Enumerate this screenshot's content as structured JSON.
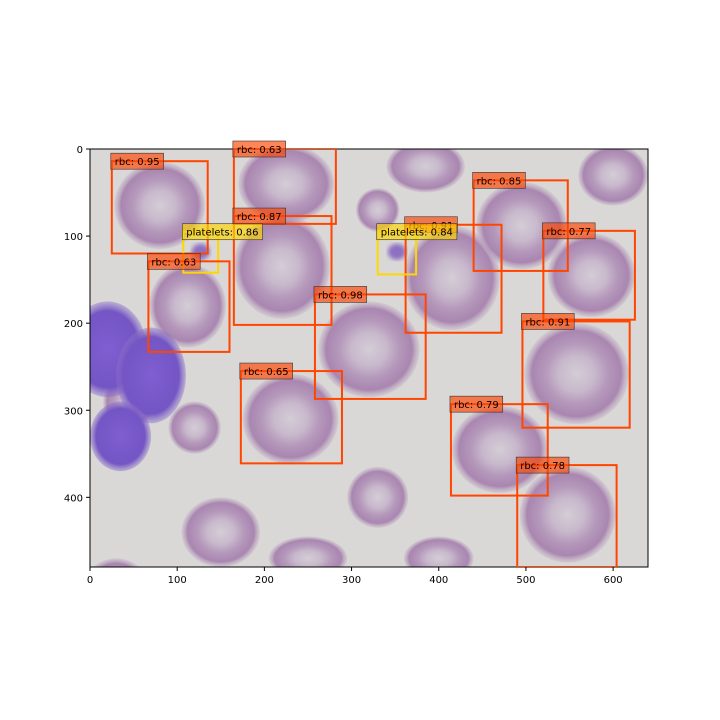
{
  "image": {
    "width": 640,
    "height": 480,
    "description_colors": {
      "background": "#d9d8d8",
      "rbc_fill": "#b394b6",
      "rbc_center": "#cfc7d1",
      "nucleus": "#7a56c8"
    }
  },
  "axes": {
    "x_ticks": [
      "0",
      "100",
      "200",
      "300",
      "400",
      "500",
      "600"
    ],
    "y_ticks": [
      "0",
      "100",
      "200",
      "300",
      "400"
    ],
    "xlim": [
      0,
      640
    ],
    "ylim": [
      480,
      0
    ]
  },
  "colors": {
    "rbc": "#ff4500",
    "platelets": "#ffd700"
  },
  "detections": [
    {
      "label": "rbc: 0.95",
      "cls": "rbc",
      "x1": 25,
      "y1": 14,
      "x2": 135,
      "y2": 120
    },
    {
      "label": "rbc: 0.63",
      "cls": "rbc",
      "x1": 165,
      "y1": 0,
      "x2": 282,
      "y2": 86
    },
    {
      "label": "rbc: 0.87",
      "cls": "rbc",
      "x1": 165,
      "y1": 77,
      "x2": 277,
      "y2": 202
    },
    {
      "label": "platelets: 0.86",
      "cls": "platelets",
      "x1": 107,
      "y1": 95,
      "x2": 147,
      "y2": 142
    },
    {
      "label": "rbc: 0.63",
      "cls": "rbc",
      "x1": 67,
      "y1": 129,
      "x2": 160,
      "y2": 233
    },
    {
      "label": "rbc: 0.91",
      "cls": "rbc",
      "x1": 362,
      "y1": 87,
      "x2": 472,
      "y2": 211
    },
    {
      "label": "platelets: 0.84",
      "cls": "platelets",
      "x1": 330,
      "y1": 95,
      "x2": 374,
      "y2": 144
    },
    {
      "label": "rbc: 0.85",
      "cls": "rbc",
      "x1": 440,
      "y1": 36,
      "x2": 548,
      "y2": 140
    },
    {
      "label": "rbc: 0.77",
      "cls": "rbc",
      "x1": 520,
      "y1": 94,
      "x2": 625,
      "y2": 196
    },
    {
      "label": "rbc: 0.98",
      "cls": "rbc",
      "x1": 258,
      "y1": 167,
      "x2": 385,
      "y2": 287
    },
    {
      "label": "rbc: 0.91",
      "cls": "rbc",
      "x1": 496,
      "y1": 198,
      "x2": 619,
      "y2": 320
    },
    {
      "label": "rbc: 0.65",
      "cls": "rbc",
      "x1": 173,
      "y1": 255,
      "x2": 289,
      "y2": 361
    },
    {
      "label": "rbc: 0.79",
      "cls": "rbc",
      "x1": 414,
      "y1": 293,
      "x2": 525,
      "y2": 398
    },
    {
      "label": "rbc: 0.78",
      "cls": "rbc",
      "x1": 490,
      "y1": 363,
      "x2": 604,
      "y2": 480
    }
  ]
}
